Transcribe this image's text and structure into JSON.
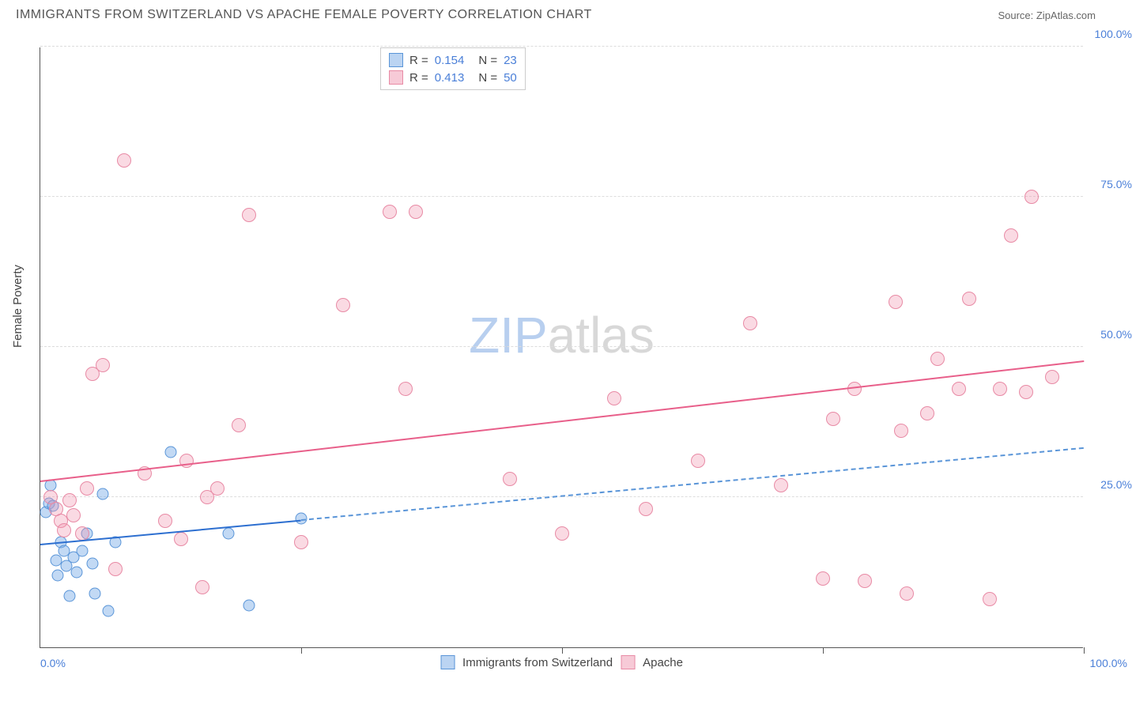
{
  "title": "IMMIGRANTS FROM SWITZERLAND VS APACHE FEMALE POVERTY CORRELATION CHART",
  "source_prefix": "Source: ",
  "source": "ZipAtlas.com",
  "ylabel": "Female Poverty",
  "watermark_a": "ZIP",
  "watermark_b": "atlas",
  "chart": {
    "type": "scatter",
    "xlim": [
      0,
      100
    ],
    "ylim": [
      0,
      100
    ],
    "xgrid": [
      25,
      50,
      75,
      100
    ],
    "ygrid": [
      25,
      50,
      75,
      100
    ],
    "ylabels": [
      {
        "v": 25,
        "t": "25.0%"
      },
      {
        "v": 50,
        "t": "50.0%"
      },
      {
        "v": 75,
        "t": "75.0%"
      },
      {
        "v": 100,
        "t": "100.0%"
      }
    ],
    "x0_label": "0.0%",
    "x100_label": "100.0%",
    "background_color": "#ffffff",
    "grid_color": "#dddddd",
    "axis_color": "#555555",
    "tick_label_color": "#4a7fd8",
    "series": [
      {
        "name": "Immigrants from Switzerland",
        "color_fill": "rgba(120,170,230,0.45)",
        "color_stroke": "#5a95d8",
        "marker_size": 15,
        "trend": {
          "x1": 0,
          "y1": 17,
          "x2": 25,
          "y2": 21,
          "x2_ext": 100,
          "y2_ext": 33,
          "solid_color": "#2d6fd0",
          "dash_color": "#5a95d8"
        },
        "points": [
          [
            0.5,
            22.5
          ],
          [
            0.8,
            24.0
          ],
          [
            1.0,
            27.0
          ],
          [
            1.2,
            23.5
          ],
          [
            1.5,
            14.5
          ],
          [
            1.7,
            12.0
          ],
          [
            2.0,
            17.5
          ],
          [
            2.3,
            16.0
          ],
          [
            2.5,
            13.5
          ],
          [
            2.8,
            8.5
          ],
          [
            3.2,
            15.0
          ],
          [
            3.5,
            12.5
          ],
          [
            4.0,
            16.0
          ],
          [
            4.5,
            19.0
          ],
          [
            5.0,
            14.0
          ],
          [
            5.2,
            9.0
          ],
          [
            6.5,
            6.0
          ],
          [
            6.0,
            25.5
          ],
          [
            7.2,
            17.5
          ],
          [
            12.5,
            32.5
          ],
          [
            18.0,
            19.0
          ],
          [
            20.0,
            7.0
          ],
          [
            25.0,
            21.5
          ]
        ]
      },
      {
        "name": "Apache",
        "color_fill": "rgba(240,150,175,0.35)",
        "color_stroke": "#e88aa5",
        "marker_size": 18,
        "trend": {
          "x1": 0,
          "y1": 27.5,
          "x2": 100,
          "y2": 47.5,
          "solid_color": "#e85f8a"
        },
        "points": [
          [
            1.0,
            25.0
          ],
          [
            1.5,
            23.0
          ],
          [
            2.0,
            21.0
          ],
          [
            2.3,
            19.5
          ],
          [
            2.8,
            24.5
          ],
          [
            3.2,
            22.0
          ],
          [
            4.0,
            19.0
          ],
          [
            4.5,
            26.5
          ],
          [
            5.0,
            45.5
          ],
          [
            6.0,
            47.0
          ],
          [
            7.2,
            13.0
          ],
          [
            8.0,
            81.0
          ],
          [
            10.0,
            29.0
          ],
          [
            12.0,
            21.0
          ],
          [
            13.5,
            18.0
          ],
          [
            14.0,
            31.0
          ],
          [
            15.5,
            10.0
          ],
          [
            16.0,
            25.0
          ],
          [
            17.0,
            26.5
          ],
          [
            19.0,
            37.0
          ],
          [
            20.0,
            72.0
          ],
          [
            29.0,
            57.0
          ],
          [
            33.5,
            72.5
          ],
          [
            36.0,
            72.5
          ],
          [
            35.0,
            43.0
          ],
          [
            55.0,
            41.5
          ],
          [
            68.0,
            54.0
          ],
          [
            75.0,
            11.5
          ],
          [
            76.0,
            38.0
          ],
          [
            78.0,
            43.0
          ],
          [
            79.0,
            11.0
          ],
          [
            82.0,
            57.5
          ],
          [
            82.5,
            36.0
          ],
          [
            83.0,
            9.0
          ],
          [
            85.0,
            39.0
          ],
          [
            86.0,
            48.0
          ],
          [
            88.0,
            43.0
          ],
          [
            89.0,
            58.0
          ],
          [
            91.0,
            8.0
          ],
          [
            92.0,
            43.0
          ],
          [
            93.0,
            68.5
          ],
          [
            94.5,
            42.5
          ],
          [
            95.0,
            75.0
          ],
          [
            97.0,
            45.0
          ],
          [
            58.0,
            23.0
          ],
          [
            45.0,
            28.0
          ],
          [
            50.0,
            19.0
          ],
          [
            63.0,
            31.0
          ],
          [
            71.0,
            27.0
          ],
          [
            25.0,
            17.5
          ]
        ]
      }
    ]
  },
  "legend_top": [
    {
      "swatch": "blue",
      "r_label": "R =",
      "r": "0.154",
      "n_label": "N =",
      "n": "23"
    },
    {
      "swatch": "pink",
      "r_label": "R =",
      "r": "0.413",
      "n_label": "N =",
      "n": "50"
    }
  ],
  "legend_bottom": [
    {
      "swatch": "blue",
      "label": "Immigrants from Switzerland"
    },
    {
      "swatch": "pink",
      "label": "Apache"
    }
  ]
}
